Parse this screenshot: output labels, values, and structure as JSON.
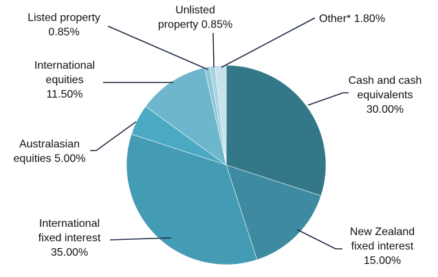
{
  "chart_data": {
    "type": "pie",
    "start_angle_deg": 90,
    "direction": "clockwise",
    "legend": "none",
    "slices": [
      {
        "name": "Cash and cash equivalents",
        "value": 30.0,
        "lines": [
          "Cash and cash",
          "equivalents",
          "30.00%"
        ],
        "color": "#337789"
      },
      {
        "name": "New Zealand fixed interest",
        "value": 15.0,
        "lines": [
          "New Zealand",
          "fixed interest",
          "15.00%"
        ],
        "color": "#3d8aa1"
      },
      {
        "name": "International fixed interest",
        "value": 35.0,
        "lines": [
          "International",
          "fixed interest",
          "35.00%"
        ],
        "color": "#449bb4"
      },
      {
        "name": "Australasian equities",
        "value": 5.0,
        "lines": [
          "Australasian",
          "equities 5.00%"
        ],
        "color": "#4ba9c4"
      },
      {
        "name": "International equities",
        "value": 11.5,
        "lines": [
          "International",
          "equities",
          "11.50%"
        ],
        "color": "#6db6cc"
      },
      {
        "name": "Listed property",
        "value": 0.85,
        "lines": [
          "Listed property",
          "0.85%"
        ],
        "color": "#8ec7d7"
      },
      {
        "name": "Unlisted property",
        "value": 0.85,
        "lines": [
          "Unlisted",
          "property 0.85%"
        ],
        "color": "#a9d3df"
      },
      {
        "name": "Other*",
        "value": 1.8,
        "lines": [
          "Other* 1.80%"
        ],
        "color": "#c7e2ea"
      }
    ]
  }
}
